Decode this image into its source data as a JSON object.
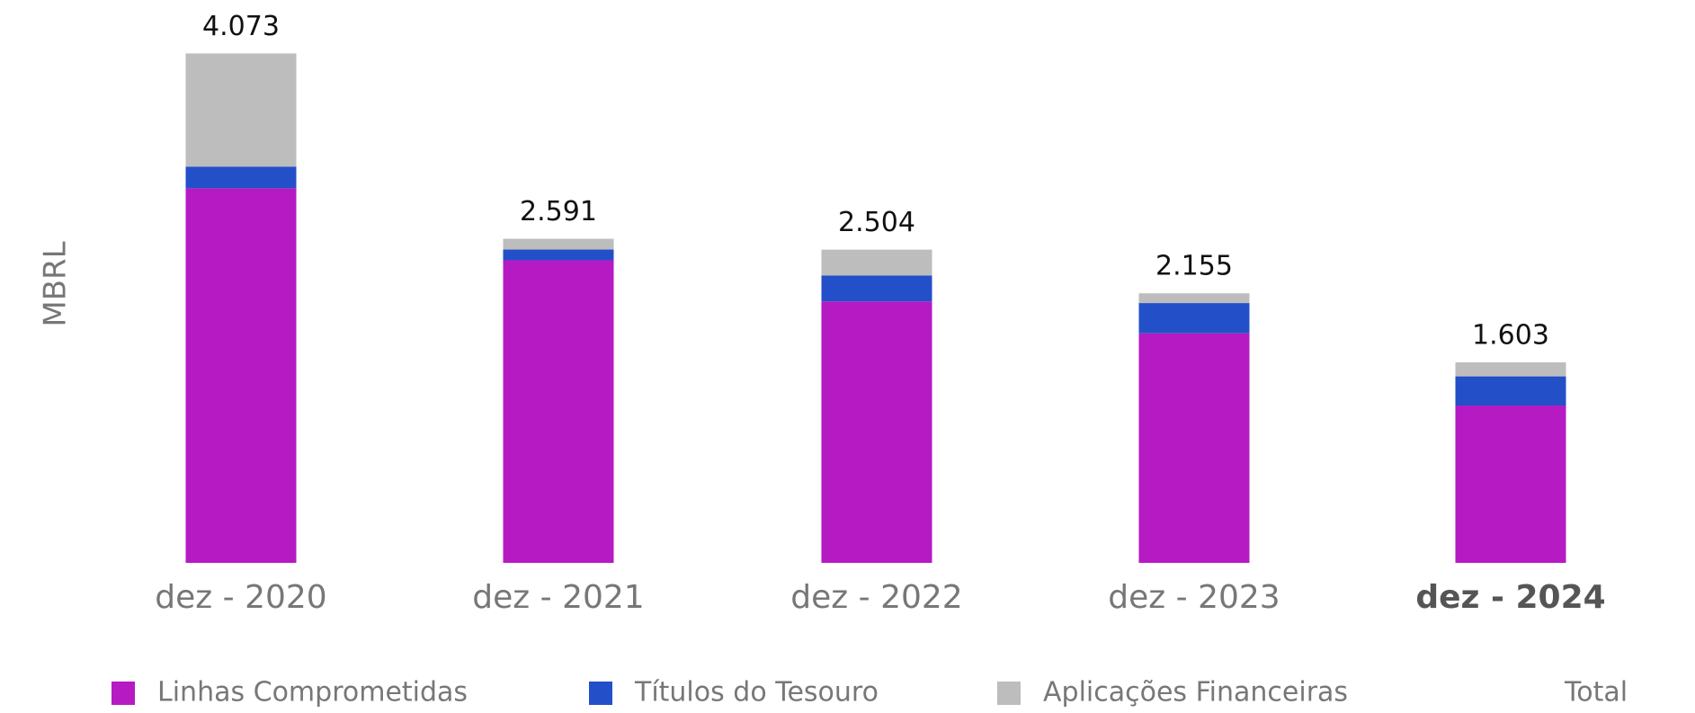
{
  "chart_data": {
    "type": "stacked_bar",
    "y_label": "MBRL",
    "categories": [
      "dez - 2020",
      "dez - 2021",
      "dez - 2022",
      "dez - 2023",
      "dez - 2024"
    ],
    "series": [
      {
        "name": "Linhas Comprometidas",
        "color": "#b51ac3",
        "values": [
          2995,
          2419,
          2090,
          1835,
          1258
        ]
      },
      {
        "name": "Títulos do Tesouro",
        "color": "#2350c8",
        "values": [
          173,
          86,
          207,
          242,
          233
        ]
      },
      {
        "name": "Aplicações Financeiras",
        "color": "#bdbdbd",
        "values": [
          905,
          86,
          207,
          78,
          112
        ]
      }
    ],
    "total_name": "Total",
    "totals": [
      4073,
      2591,
      2504,
      2155,
      1603
    ],
    "value_labels": [
      "4.073",
      "2.591",
      "2.504",
      "2.155",
      "1.603"
    ],
    "ylim": [
      0,
      4500
    ],
    "grid": false
  }
}
